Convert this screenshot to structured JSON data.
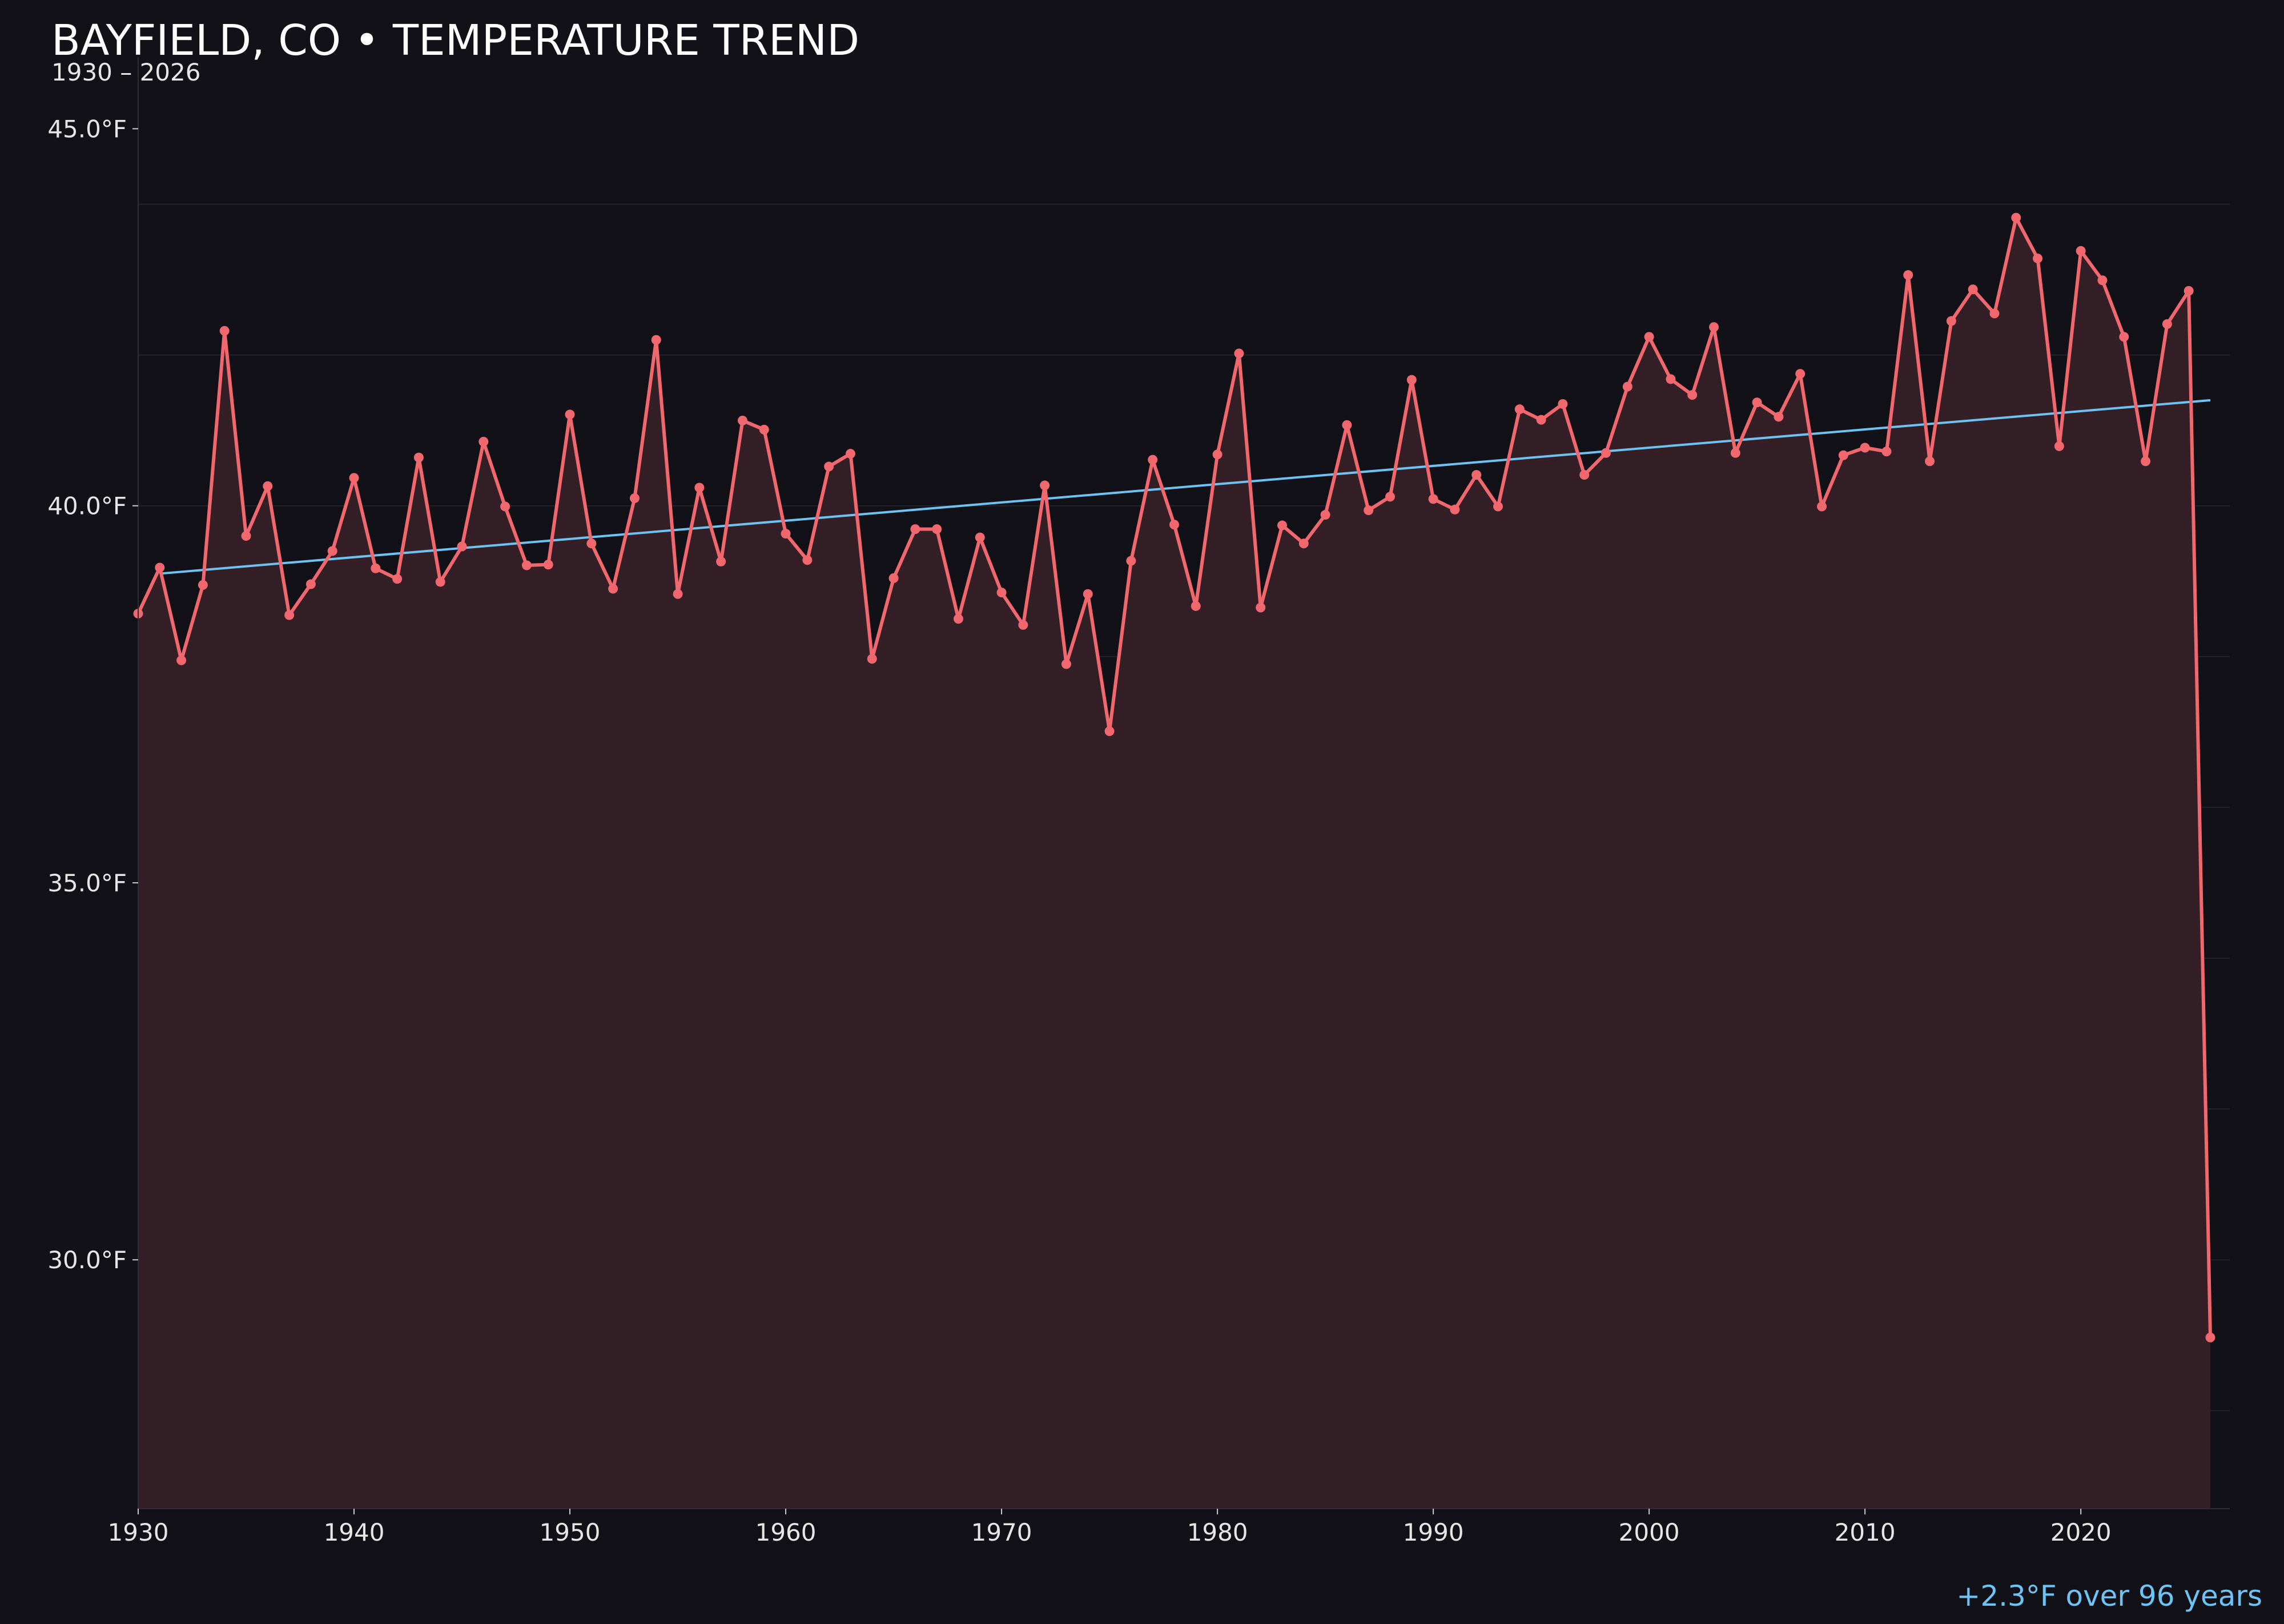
{
  "chart_data": {
    "type": "line",
    "title": "BAYFIELD, CO • TEMPERATURE TREND",
    "subtitle": "1930 – 2026",
    "footnote": "+2.3°F over 96 years",
    "xlabel": "",
    "ylabel": "",
    "xlim": [
      1930,
      2026.9
    ],
    "ylim": [
      26.7,
      45.95
    ],
    "x_ticks": [
      1930,
      1940,
      1950,
      1960,
      1970,
      1980,
      1990,
      2000,
      2010,
      2020
    ],
    "x_tick_labels": [
      "1930",
      "1940",
      "1950",
      "1960",
      "1970",
      "1980",
      "1990",
      "2000",
      "2010",
      "2020"
    ],
    "y_ticks": [
      45,
      40,
      35,
      30
    ],
    "y_tick_labels": [
      "45.0°F",
      "40.0°F",
      "35.0°F",
      "30.0°F"
    ],
    "grid_y": [
      28,
      30,
      32,
      34,
      36,
      38,
      40,
      42,
      44
    ],
    "grid": true,
    "legend": "none",
    "colors": {
      "background": "#121118",
      "line": "#f0686e",
      "fill": "#341f26",
      "trend": "#6ec3f2",
      "grid": "#24222a",
      "axis": "#2e2c34",
      "footnote": "#6ec3f2"
    },
    "series": [
      {
        "kind": "temperature",
        "x": [
          1930,
          1931,
          1932,
          1933,
          1934,
          1935,
          1936,
          1937,
          1938,
          1939,
          1940,
          1941,
          1942,
          1943,
          1944,
          1945,
          1946,
          1947,
          1948,
          1949,
          1950,
          1951,
          1952,
          1953,
          1954,
          1955,
          1956,
          1957,
          1958,
          1959,
          1960,
          1961,
          1962,
          1963,
          1964,
          1965,
          1966,
          1967,
          1968,
          1969,
          1970,
          1971,
          1972,
          1973,
          1974,
          1975,
          1976,
          1977,
          1978,
          1979,
          1980,
          1981,
          1982,
          1983,
          1984,
          1985,
          1986,
          1987,
          1988,
          1989,
          1990,
          1991,
          1992,
          1993,
          1994,
          1995,
          1996,
          1997,
          1998,
          1999,
          2000,
          2001,
          2002,
          2003,
          2004,
          2005,
          2006,
          2007,
          2008,
          2009,
          2010,
          2011,
          2012,
          2013,
          2014,
          2015,
          2016,
          2017,
          2018,
          2019,
          2020,
          2021,
          2022,
          2023,
          2024,
          2025,
          2026
        ],
        "values": [
          38.57,
          39.18,
          37.95,
          38.95,
          42.32,
          39.6,
          40.26,
          38.55,
          38.96,
          39.4,
          40.37,
          39.17,
          39.03,
          40.64,
          38.99,
          39.46,
          40.85,
          39.99,
          39.21,
          39.22,
          41.21,
          39.5,
          38.9,
          40.1,
          42.2,
          38.83,
          40.24,
          39.26,
          41.13,
          41.01,
          39.63,
          39.28,
          40.52,
          40.69,
          37.97,
          39.04,
          39.69,
          39.69,
          38.5,
          39.58,
          38.85,
          38.42,
          40.27,
          37.9,
          38.83,
          37.01,
          39.27,
          40.61,
          39.75,
          38.67,
          40.68,
          42.02,
          38.65,
          39.74,
          39.5,
          39.88,
          41.07,
          39.94,
          40.12,
          41.67,
          40.09,
          39.95,
          40.41,
          39.99,
          41.28,
          41.14,
          41.35,
          40.41,
          40.7,
          41.58,
          42.24,
          41.68,
          41.47,
          42.37,
          40.7,
          41.37,
          41.18,
          41.75,
          39.99,
          40.67,
          40.77,
          40.72,
          43.06,
          40.59,
          42.45,
          42.87,
          42.55,
          43.82,
          43.28,
          40.79,
          43.38,
          42.99,
          42.24,
          40.59,
          42.41,
          42.85,
          28.97
        ]
      },
      {
        "kind": "trend",
        "x": [
          1931,
          2026
        ],
        "values": [
          39.1,
          41.4
        ]
      }
    ]
  }
}
